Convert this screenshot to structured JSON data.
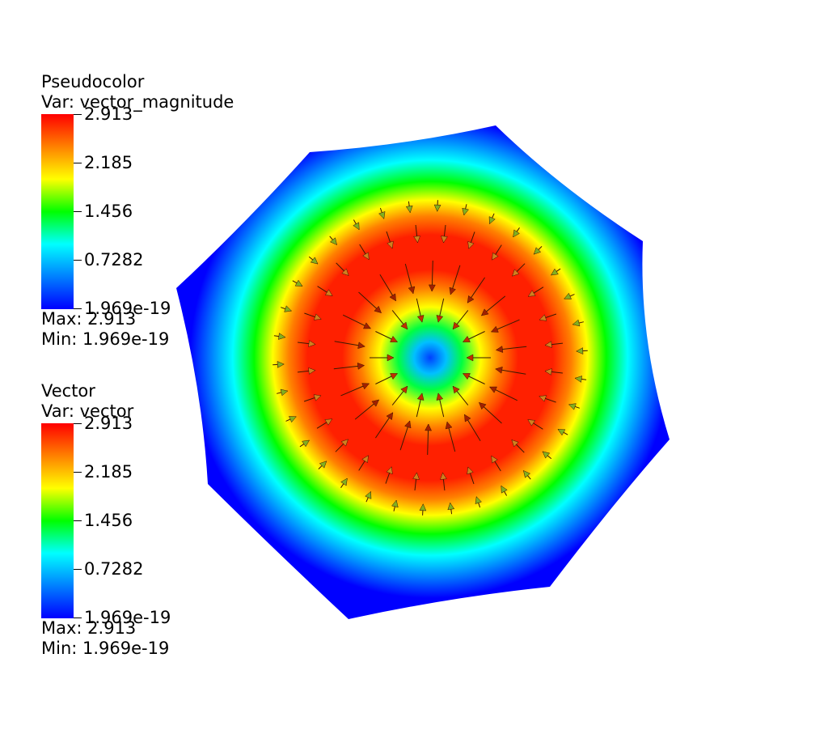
{
  "legends": [
    {
      "title": "Pseudocolor",
      "var_label": "Var: vector_magnitude",
      "ticks": [
        "2.913",
        "2.185",
        "1.456",
        "0.7282",
        "1.969e-19"
      ],
      "max_label": "Max:  2.913",
      "min_label": "Min:  1.969e-19"
    },
    {
      "title": "Vector",
      "var_label": "Var: vector",
      "ticks": [
        "2.913",
        "2.185",
        "1.456",
        "0.7282",
        "1.969e-19"
      ],
      "max_label": "Max:  2.913",
      "min_label": "Min:  1.969e-19"
    }
  ],
  "colormap": [
    "#0000ff",
    "#0080ff",
    "#00ffff",
    "#00ff00",
    "#ffff00",
    "#ff8000",
    "#ff0000"
  ],
  "field": {
    "shape": "octagon",
    "pattern": "radial ring, peak magnitude at mid-radius, inward-pointing vectors"
  }
}
